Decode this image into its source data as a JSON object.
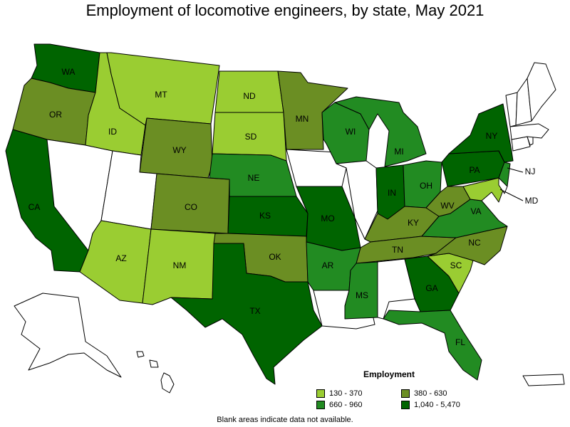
{
  "title": "Employment of locomotive engineers, by state, May 2021",
  "footnote": "Blank areas indicate data not available.",
  "legend": {
    "title": "Employment",
    "items": [
      {
        "label": "130 - 370",
        "color": "#9acd32"
      },
      {
        "label": "380 - 630",
        "color": "#6b8e23"
      },
      {
        "label": "660 - 960",
        "color": "#228b22"
      },
      {
        "label": "1,040 - 5,470",
        "color": "#006400"
      }
    ]
  },
  "colors": {
    "blank": "#ffffff",
    "bin1": "#9acd32",
    "bin2": "#6b8e23",
    "bin3": "#228b22",
    "bin4": "#006400"
  },
  "states": {
    "WA": {
      "label": "WA",
      "bin": 4
    },
    "OR": {
      "label": "OR",
      "bin": 2
    },
    "CA": {
      "label": "CA",
      "bin": 4
    },
    "ID": {
      "label": "ID",
      "bin": 1
    },
    "MT": {
      "label": "MT",
      "bin": 1
    },
    "WY": {
      "label": "WY",
      "bin": 2
    },
    "ND": {
      "label": "ND",
      "bin": 1
    },
    "SD": {
      "label": "SD",
      "bin": 1
    },
    "NE": {
      "label": "NE",
      "bin": 3
    },
    "CO": {
      "label": "CO",
      "bin": 2
    },
    "KS": {
      "label": "KS",
      "bin": 4
    },
    "OK": {
      "label": "OK",
      "bin": 2
    },
    "TX": {
      "label": "TX",
      "bin": 4
    },
    "AZ": {
      "label": "AZ",
      "bin": 1
    },
    "NM": {
      "label": "NM",
      "bin": 1
    },
    "MN": {
      "label": "MN",
      "bin": 2
    },
    "WI": {
      "label": "WI",
      "bin": 3
    },
    "MI": {
      "label": "MI",
      "bin": 3
    },
    "MO": {
      "label": "MO",
      "bin": 4
    },
    "AR": {
      "label": "AR",
      "bin": 3
    },
    "MS": {
      "label": "MS",
      "bin": 3
    },
    "IN": {
      "label": "IN",
      "bin": 4
    },
    "OH": {
      "label": "OH",
      "bin": 3
    },
    "KY": {
      "label": "KY",
      "bin": 2
    },
    "TN": {
      "label": "TN",
      "bin": 2
    },
    "GA": {
      "label": "GA",
      "bin": 4
    },
    "FL": {
      "label": "FL",
      "bin": 3
    },
    "SC": {
      "label": "SC",
      "bin": 1
    },
    "NC": {
      "label": "NC",
      "bin": 2
    },
    "VA": {
      "label": "VA",
      "bin": 3
    },
    "WV": {
      "label": "WV",
      "bin": 2
    },
    "PA": {
      "label": "PA",
      "bin": 4
    },
    "NY": {
      "label": "NY",
      "bin": 4
    },
    "NJ": {
      "label": "NJ",
      "bin": 3
    },
    "MD": {
      "label": "MD",
      "bin": 1
    },
    "NV": {
      "label": "",
      "bin": 0
    },
    "UT": {
      "label": "",
      "bin": 0
    },
    "IA": {
      "label": "",
      "bin": 0
    },
    "IL": {
      "label": "",
      "bin": 0
    },
    "LA": {
      "label": "",
      "bin": 0
    },
    "AL": {
      "label": "",
      "bin": 0
    },
    "ME": {
      "label": "",
      "bin": 0
    },
    "VT": {
      "label": "",
      "bin": 0
    },
    "NH": {
      "label": "",
      "bin": 0
    },
    "MA": {
      "label": "",
      "bin": 0
    },
    "CT": {
      "label": "",
      "bin": 0
    },
    "RI": {
      "label": "",
      "bin": 0
    },
    "DE": {
      "label": "",
      "bin": 0
    },
    "AK": {
      "label": "",
      "bin": 0
    },
    "HI": {
      "label": "",
      "bin": 0
    },
    "PR": {
      "label": "",
      "bin": 0
    }
  }
}
